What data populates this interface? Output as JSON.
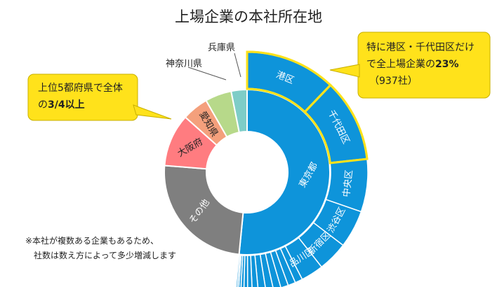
{
  "title": "上場企業の本社所在地",
  "callout_left": {
    "line1": "上位5都府県で全体",
    "line2_pre": "の",
    "line2_bold": "3/4以上"
  },
  "callout_right": {
    "line1": "特に港区・千代田区だけ",
    "line2_pre": "で全上場企業の",
    "line2_bold": "23%",
    "line3": "（937社）"
  },
  "note": {
    "line1": "※本社が複数ある企業もあるため、",
    "line2": "社数は数え方によって多少増減します"
  },
  "colors": {
    "tokyo": "#0E94DA",
    "other": "#7F7F7F",
    "osaka": "#FF7C80",
    "aichi": "#F4A07C",
    "kanagawa": "#B7D98A",
    "hyogo": "#7ECDC7",
    "highlight": "#FFE21B"
  },
  "chart_data": {
    "type": "sunburst",
    "title": "上場企業の本社所在地",
    "inner": [
      {
        "name": "東京都",
        "value": 50,
        "color": "#0E94DA"
      },
      {
        "name": "その他",
        "value": 24,
        "color": "#7F7F7F"
      },
      {
        "name": "大阪府",
        "value": 10,
        "color": "#FF7C80"
      },
      {
        "name": "愛知県",
        "value": 5,
        "color": "#F4A07C"
      },
      {
        "name": "神奈川県",
        "value": 5,
        "color": "#B7D98A"
      },
      {
        "name": "兵庫県",
        "value": 3,
        "color": "#7ECDC7"
      }
    ],
    "outer_tokyo": [
      {
        "name": "港区",
        "value": 12,
        "highlight": true
      },
      {
        "name": "千代田区",
        "value": 11,
        "highlight": true
      },
      {
        "name": "中央区",
        "value": 7
      },
      {
        "name": "渋谷区",
        "value": 5
      },
      {
        "name": "新宿区",
        "value": 4
      },
      {
        "name": "品川区",
        "value": 3
      },
      {
        "name": "",
        "value": 1
      },
      {
        "name": "",
        "value": 1
      },
      {
        "name": "",
        "value": 1
      },
      {
        "name": "",
        "value": 1
      },
      {
        "name": "",
        "value": 1
      },
      {
        "name": "",
        "value": 1
      },
      {
        "name": "",
        "value": 0.8
      },
      {
        "name": "",
        "value": 0.6
      },
      {
        "name": "",
        "value": 0.5
      },
      {
        "name": "",
        "value": 0.4
      },
      {
        "name": "",
        "value": 0.3
      },
      {
        "name": "",
        "value": 0.2
      },
      {
        "name": "",
        "value": 0.2
      }
    ]
  }
}
